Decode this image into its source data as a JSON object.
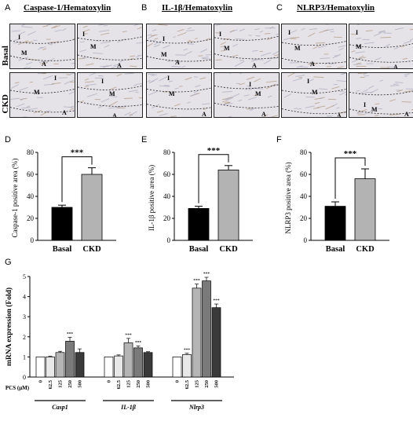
{
  "panel_letters": [
    "A",
    "B",
    "C",
    "D",
    "E",
    "F",
    "G"
  ],
  "stain_titles": [
    "Caspase-1/Hematoxylin",
    "IL-1β/Hematoxylin",
    "NLRP3/Hematoxylin"
  ],
  "row_labels": [
    "Basal",
    "CKD"
  ],
  "region_labels": {
    "I": "I",
    "M": "M",
    "A": "A"
  },
  "colors": {
    "basal_bar": "#000000",
    "ckd_bar": "#b3b3b3",
    "micro_bg": "#e6e3e8",
    "micro_brown": "#a88b6a"
  },
  "chart_data": [
    {
      "type": "bar",
      "panel": "D",
      "categories": [
        "Basal",
        "CKD"
      ],
      "values": [
        30,
        60
      ],
      "errors": [
        2,
        6
      ],
      "ylabel": "Caspase-1 positive area (%)",
      "ylim": [
        0,
        80
      ],
      "yticks": [
        "0",
        "20",
        "40",
        "60",
        "80"
      ],
      "significance": "***"
    },
    {
      "type": "bar",
      "panel": "E",
      "categories": [
        "Basal",
        "CKD"
      ],
      "values": [
        29,
        64
      ],
      "errors": [
        2,
        4
      ],
      "ylabel": "IL-1β positive area (%)",
      "ylim": [
        0,
        80
      ],
      "yticks": [
        "0",
        "20",
        "40",
        "60",
        "80"
      ],
      "significance": "***"
    },
    {
      "type": "bar",
      "panel": "F",
      "categories": [
        "Basal",
        "CKD"
      ],
      "values": [
        31,
        56
      ],
      "errors": [
        4,
        9
      ],
      "ylabel": "NLRP3 positive area (%)",
      "ylim": [
        0,
        80
      ],
      "yticks": [
        "0",
        "20",
        "40",
        "60",
        "80"
      ],
      "significance": "***"
    },
    {
      "type": "bar",
      "panel": "G",
      "ylabel": "mRNA expression (Fold)",
      "ylim": [
        0,
        5
      ],
      "yticks": [
        "0",
        "1",
        "2",
        "3",
        "4",
        "5"
      ],
      "x_prefix": "PCS (μM)",
      "doses": [
        "0",
        "62.5",
        "125",
        "250",
        "500"
      ],
      "dose_colors": [
        "#ffffff",
        "#e8e8e8",
        "#b5b5b5",
        "#7a7a7a",
        "#3a3a3a"
      ],
      "groups": [
        {
          "name": "Casp1",
          "values": [
            1.0,
            1.0,
            1.22,
            1.78,
            1.22
          ],
          "errors": [
            0.0,
            0.03,
            0.06,
            0.2,
            0.18
          ],
          "sig": [
            "",
            "",
            "",
            "***",
            ""
          ]
        },
        {
          "name": "IL-1β",
          "values": [
            1.0,
            1.05,
            1.7,
            1.45,
            1.22
          ],
          "errors": [
            0.0,
            0.05,
            0.22,
            0.1,
            0.04
          ],
          "sig": [
            "",
            "",
            "***",
            "***",
            ""
          ]
        },
        {
          "name": "Nlrp3",
          "values": [
            1.0,
            1.12,
            4.42,
            4.78,
            3.45
          ],
          "errors": [
            0.0,
            0.06,
            0.2,
            0.18,
            0.18
          ],
          "sig": [
            "",
            "***",
            "***",
            "***",
            "***"
          ]
        }
      ]
    }
  ]
}
